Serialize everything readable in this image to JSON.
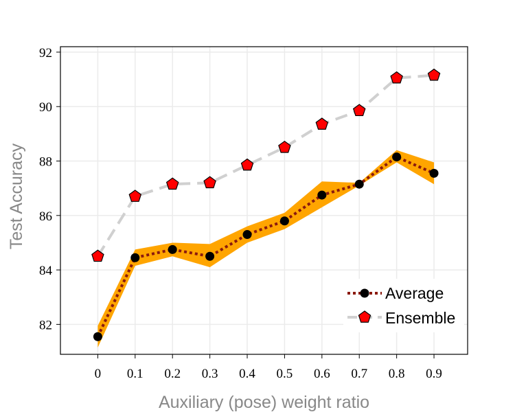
{
  "chart_data": {
    "type": "line",
    "xlabel": "Auxiliary (pose) weight ratio",
    "ylabel": "Test Accuracy",
    "x": [
      0,
      0.1,
      0.2,
      0.3,
      0.4,
      0.5,
      0.6,
      0.7,
      0.8,
      0.9
    ],
    "x_tick_labels": [
      "0",
      "0.1",
      "0.2",
      "0.3",
      "0.4",
      "0.5",
      "0.6",
      "0.7",
      "0.8",
      "0.9"
    ],
    "y_ticks": [
      82,
      84,
      86,
      88,
      90,
      92
    ],
    "y_tick_labels": [
      "82",
      "84",
      "86",
      "88",
      "90",
      "92"
    ],
    "xlim": [
      -0.1,
      0.99
    ],
    "ylim": [
      80.9,
      92.2
    ],
    "grid": true,
    "legend_position": "bottom-right",
    "series": [
      {
        "name": "Average",
        "values": [
          81.55,
          84.45,
          84.75,
          84.5,
          85.3,
          85.8,
          86.75,
          87.15,
          88.15,
          87.55
        ],
        "band_upper": [
          81.95,
          84.75,
          85.0,
          84.95,
          85.6,
          86.1,
          87.25,
          87.2,
          88.4,
          87.95
        ],
        "band_lower": [
          81.15,
          84.15,
          84.5,
          84.1,
          85.0,
          85.5,
          86.3,
          87.1,
          87.95,
          87.15
        ],
        "color": "#8b1a0e",
        "band_color": "#ffa500",
        "marker": "circle",
        "marker_color": "#000000",
        "line_style": "dotted"
      },
      {
        "name": "Ensemble",
        "values": [
          84.5,
          86.7,
          87.15,
          87.2,
          87.85,
          88.5,
          89.35,
          89.85,
          91.05,
          91.15
        ],
        "color": "#d0d0d0",
        "marker": "pentagon",
        "marker_color": "#ff0000",
        "line_style": "dashed"
      }
    ]
  }
}
